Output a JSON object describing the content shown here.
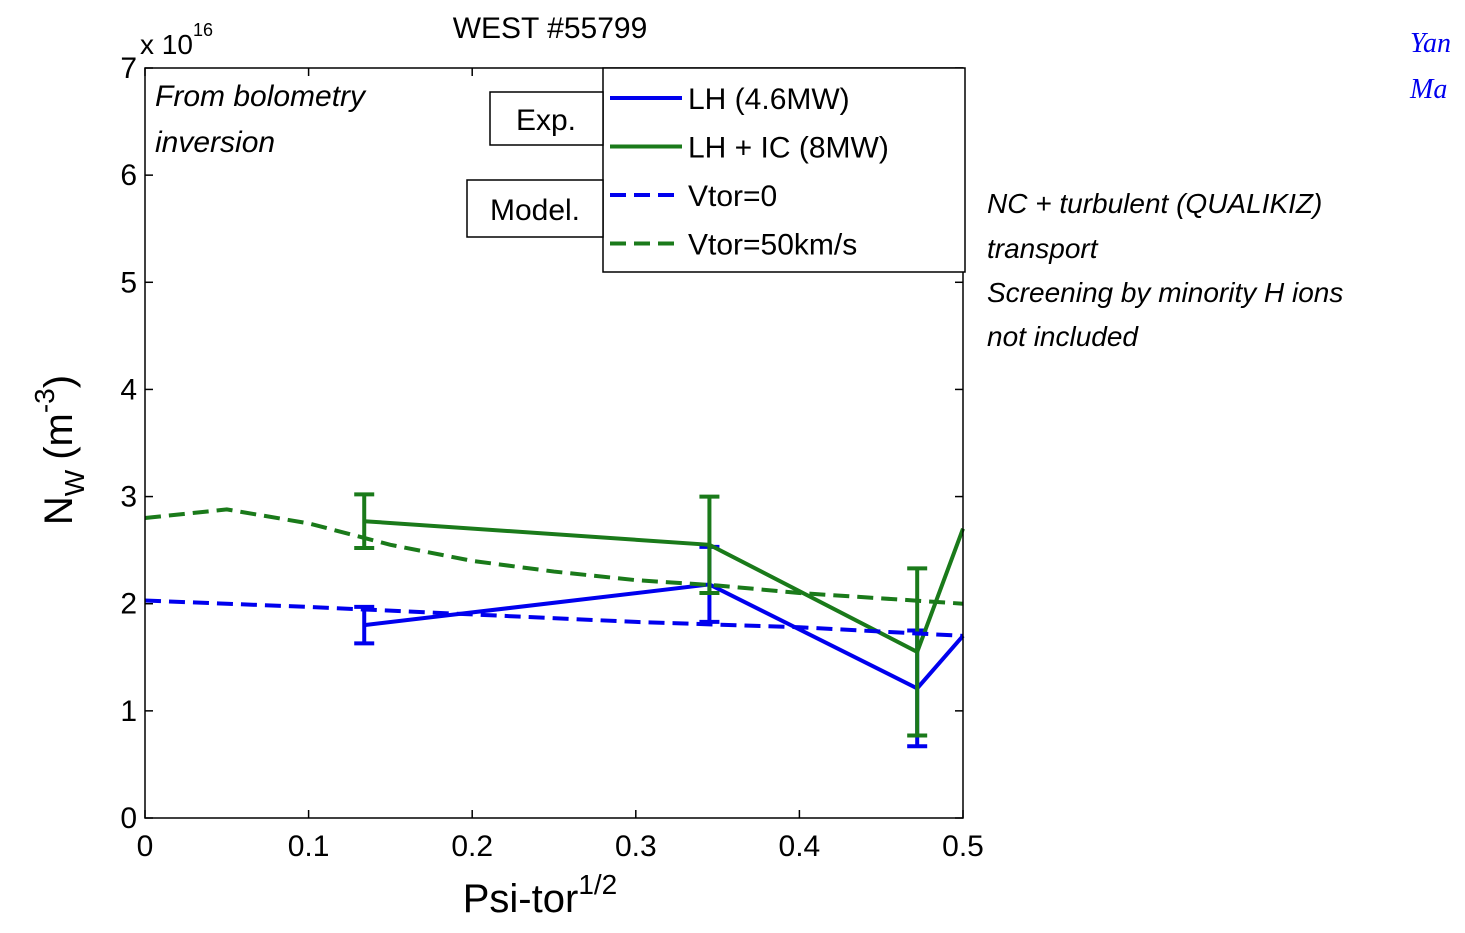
{
  "chart_data": {
    "type": "line",
    "title": "WEST #55799",
    "y_multiplier": "x 10",
    "y_multiplier_exponent": "16",
    "y_label": {
      "base": "N",
      "subscript": "W",
      "open": "(m",
      "superscript": "-3",
      "close": ")"
    },
    "x_label": {
      "base": "Psi-tor",
      "superscript": "1/2"
    },
    "annotation": [
      "From bolometry",
      "inversion"
    ],
    "legend_groups": [
      "Exp.",
      "Model."
    ],
    "side_note": [
      "NC + turbulent (QUALIKIZ)",
      "transport",
      "Screening by minority H ions",
      "not included"
    ],
    "corner_text": [
      "Yan",
      "Ma"
    ],
    "xlim": [
      0,
      0.5
    ],
    "ylim": [
      0,
      7
    ],
    "xticks": [
      0,
      0.1,
      0.2,
      0.3,
      0.4,
      0.5
    ],
    "yticks": [
      0,
      1,
      2,
      3,
      4,
      5,
      6,
      7
    ],
    "series": [
      {
        "name": "LH (4.6MW)",
        "color": "#0000ee",
        "dash": false,
        "x": [
          0.134,
          0.345,
          0.472,
          0.5
        ],
        "values": [
          1.8,
          2.18,
          1.21,
          1.7
        ],
        "errors": [
          0.17,
          0.35,
          0.54,
          null
        ]
      },
      {
        "name": "LH + IC (8MW)",
        "color": "#1a7a1a",
        "dash": false,
        "x": [
          0.134,
          0.345,
          0.472,
          0.5
        ],
        "values": [
          2.77,
          2.55,
          1.55,
          2.7
        ],
        "errors": [
          0.25,
          0.45,
          0.78,
          null
        ]
      },
      {
        "name": "Vtor=0",
        "color": "#0000ee",
        "dash": true,
        "x": [
          0,
          0.1,
          0.2,
          0.3,
          0.4,
          0.45,
          0.5
        ],
        "values": [
          2.03,
          1.97,
          1.9,
          1.83,
          1.78,
          1.74,
          1.7
        ]
      },
      {
        "name": "Vtor=50km/s",
        "color": "#1a7a1a",
        "dash": true,
        "x": [
          0,
          0.05,
          0.1,
          0.15,
          0.2,
          0.25,
          0.3,
          0.35,
          0.4,
          0.45,
          0.5
        ],
        "values": [
          2.8,
          2.88,
          2.75,
          2.55,
          2.4,
          2.3,
          2.22,
          2.17,
          2.1,
          2.05,
          2.0
        ]
      }
    ]
  }
}
